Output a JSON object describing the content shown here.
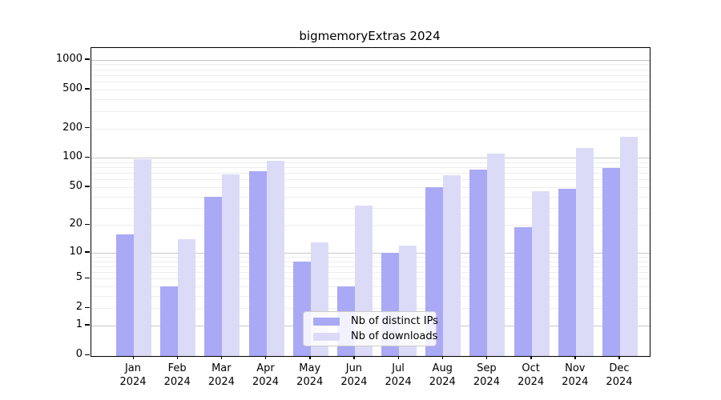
{
  "title": "bigmemoryExtras 2024",
  "chart_data": {
    "type": "bar",
    "title": "bigmemoryExtras 2024",
    "scale": "log1p",
    "grid": true,
    "legend_position": "bottom-center",
    "categories": [
      "Jan",
      "Feb",
      "Mar",
      "Apr",
      "May",
      "Jun",
      "Jul",
      "Aug",
      "Sep",
      "Oct",
      "Nov",
      "Dec"
    ],
    "x_year_label": "2024",
    "y_ticks": [
      0,
      1,
      2,
      5,
      10,
      20,
      50,
      100,
      200,
      500,
      1000
    ],
    "ylim": [
      0,
      1400
    ],
    "series": [
      {
        "name": "Nb of distinct IPs",
        "color": "#a9a9f5",
        "values": [
          16,
          4,
          40,
          73,
          8,
          4,
          10,
          50,
          76,
          19,
          48,
          79
        ]
      },
      {
        "name": "Nb of downloads",
        "color": "#dbdbf8",
        "values": [
          96,
          14,
          68,
          94,
          13,
          32,
          12,
          66,
          111,
          45,
          127,
          165
        ]
      }
    ]
  },
  "colors": {
    "background": "#ffffff",
    "axis": "#000000",
    "major_grid": "#c6c6c6",
    "minor_grid": "#ededed",
    "bar_distinct_ips": "#a9a9f5",
    "bar_downloads": "#dbdbf8"
  }
}
